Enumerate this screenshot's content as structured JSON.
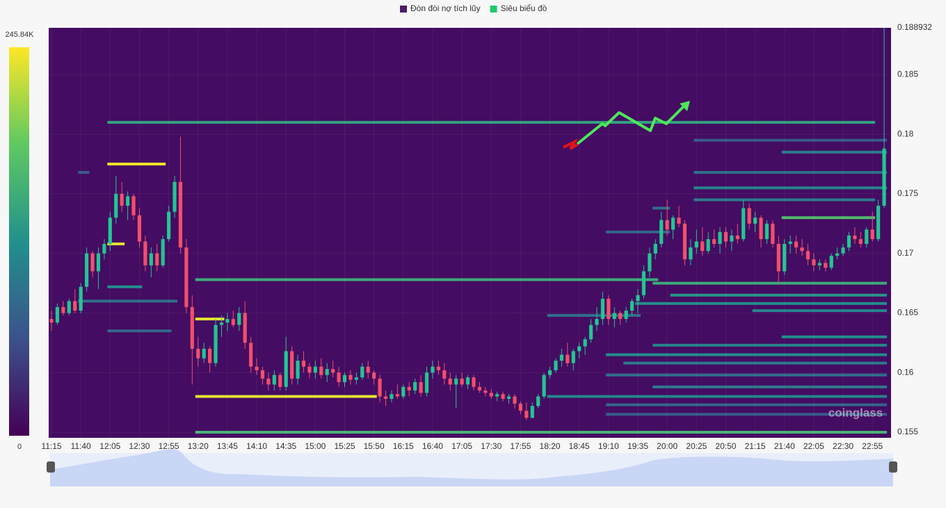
{
  "chart_data": {
    "type": "candlestick",
    "legend": [
      {
        "name": "Đòn đòi nợ tích lũy",
        "color": "#4b1a6b"
      },
      {
        "name": "Siêu biểu đồ",
        "color": "#1fc96e"
      }
    ],
    "watermark": "coinglass",
    "up_color": "#22c592",
    "down_color": "#f04f6b",
    "grid": true,
    "ylim": [
      0.15453,
      0.188932
    ],
    "yticks": [
      0.155,
      0.16,
      0.165,
      0.17,
      0.175,
      0.18,
      0.185,
      0.188932
    ],
    "clim": [
      0,
      245840
    ],
    "cticks": [
      0,
      {
        "value": 245840,
        "label": "245.84K"
      }
    ],
    "colorscale": [
      "#440154",
      "#3b528b",
      "#21918c",
      "#5ec962",
      "#fde725"
    ],
    "categories": [
      "11:15",
      null,
      null,
      null,
      null,
      "11:40",
      null,
      null,
      null,
      null,
      "12:05",
      null,
      null,
      null,
      null,
      "12:30",
      null,
      null,
      null,
      null,
      "12:55",
      null,
      null,
      null,
      null,
      "13:20",
      null,
      null,
      null,
      null,
      "13:45",
      null,
      null,
      null,
      null,
      "14:10",
      null,
      null,
      null,
      null,
      "14:35",
      null,
      null,
      null,
      null,
      "15:00",
      null,
      null,
      null,
      null,
      "15:25",
      null,
      null,
      null,
      null,
      "15:50",
      null,
      null,
      null,
      null,
      "16:15",
      null,
      null,
      null,
      null,
      "16:40",
      null,
      null,
      null,
      null,
      "17:05",
      null,
      null,
      null,
      null,
      "17:30",
      null,
      null,
      null,
      null,
      "17:55",
      null,
      null,
      null,
      null,
      "18:20",
      null,
      null,
      null,
      null,
      "18:45",
      null,
      null,
      null,
      null,
      "19:10",
      null,
      null,
      null,
      null,
      "19:35",
      null,
      null,
      null,
      null,
      "20:00",
      null,
      null,
      null,
      null,
      "20:25",
      null,
      null,
      null,
      null,
      "20:50",
      null,
      null,
      null,
      null,
      "21:15",
      null,
      null,
      null,
      null,
      "21:40",
      null,
      null,
      null,
      null,
      "22:05",
      null,
      null,
      null,
      null,
      "22:30",
      null,
      null,
      null,
      null,
      "22:55",
      null,
      null
    ],
    "ohlc": [
      [
        0.1645,
        0.1652,
        0.1635,
        0.1642
      ],
      [
        0.1642,
        0.1658,
        0.164,
        0.1655
      ],
      [
        0.1655,
        0.166,
        0.1648,
        0.165
      ],
      [
        0.165,
        0.1662,
        0.1648,
        0.166
      ],
      [
        0.166,
        0.167,
        0.165,
        0.1652
      ],
      [
        0.1652,
        0.1675,
        0.165,
        0.1672
      ],
      [
        0.1672,
        0.1705,
        0.1668,
        0.17
      ],
      [
        0.17,
        0.1702,
        0.168,
        0.1685
      ],
      [
        0.1685,
        0.1705,
        0.167,
        0.17
      ],
      [
        0.17,
        0.1712,
        0.1695,
        0.1708
      ],
      [
        0.1708,
        0.1735,
        0.1702,
        0.173
      ],
      [
        0.173,
        0.1765,
        0.1725,
        0.175
      ],
      [
        0.175,
        0.176,
        0.1735,
        0.174
      ],
      [
        0.174,
        0.1752,
        0.1728,
        0.1748
      ],
      [
        0.1748,
        0.175,
        0.1728,
        0.1732
      ],
      [
        0.1732,
        0.1738,
        0.1705,
        0.171
      ],
      [
        0.171,
        0.1715,
        0.1685,
        0.169
      ],
      [
        0.169,
        0.1705,
        0.168,
        0.17
      ],
      [
        0.17,
        0.1708,
        0.1685,
        0.169
      ],
      [
        0.169,
        0.1715,
        0.1688,
        0.1712
      ],
      [
        0.1712,
        0.174,
        0.171,
        0.1735
      ],
      [
        0.1735,
        0.1765,
        0.173,
        0.176
      ],
      [
        0.176,
        0.1798,
        0.17,
        0.1705
      ],
      [
        0.1705,
        0.1712,
        0.165,
        0.1655
      ],
      [
        0.1655,
        0.1665,
        0.159,
        0.162
      ],
      [
        0.162,
        0.163,
        0.1605,
        0.1612
      ],
      [
        0.1612,
        0.1625,
        0.1608,
        0.162
      ],
      [
        0.162,
        0.1622,
        0.16,
        0.1608
      ],
      [
        0.1608,
        0.1645,
        0.1605,
        0.164
      ],
      [
        0.164,
        0.1648,
        0.163,
        0.1642
      ],
      [
        0.1642,
        0.165,
        0.1635,
        0.1645
      ],
      [
        0.1645,
        0.1652,
        0.1638,
        0.164
      ],
      [
        0.164,
        0.1655,
        0.1635,
        0.165
      ],
      [
        0.165,
        0.166,
        0.162,
        0.1625
      ],
      [
        0.1625,
        0.163,
        0.16,
        0.1605
      ],
      [
        0.1605,
        0.1612,
        0.1598,
        0.1602
      ],
      [
        0.1602,
        0.1605,
        0.159,
        0.1595
      ],
      [
        0.1595,
        0.16,
        0.1585,
        0.159
      ],
      [
        0.159,
        0.1602,
        0.1585,
        0.1598
      ],
      [
        0.1598,
        0.16,
        0.1585,
        0.1588
      ],
      [
        0.1588,
        0.163,
        0.1585,
        0.1618
      ],
      [
        0.1618,
        0.1622,
        0.159,
        0.1595
      ],
      [
        0.1595,
        0.1615,
        0.159,
        0.161
      ],
      [
        0.161,
        0.1618,
        0.16,
        0.1605
      ],
      [
        0.1605,
        0.1608,
        0.1595,
        0.16
      ],
      [
        0.16,
        0.161,
        0.1595,
        0.1605
      ],
      [
        0.1605,
        0.1612,
        0.1595,
        0.1598
      ],
      [
        0.1598,
        0.1608,
        0.1592,
        0.1603
      ],
      [
        0.1603,
        0.161,
        0.1596,
        0.16
      ],
      [
        0.16,
        0.1605,
        0.1588,
        0.1592
      ],
      [
        0.1592,
        0.16,
        0.1588,
        0.1598
      ],
      [
        0.1598,
        0.1602,
        0.159,
        0.1594
      ],
      [
        0.1594,
        0.16,
        0.159,
        0.1596
      ],
      [
        0.1596,
        0.1608,
        0.1594,
        0.1605
      ],
      [
        0.1605,
        0.161,
        0.1595,
        0.16
      ],
      [
        0.16,
        0.1602,
        0.159,
        0.1595
      ],
      [
        0.1595,
        0.1598,
        0.1575,
        0.158
      ],
      [
        0.158,
        0.1585,
        0.1572,
        0.1578
      ],
      [
        0.1578,
        0.1585,
        0.1575,
        0.1582
      ],
      [
        0.1582,
        0.159,
        0.1578,
        0.158
      ],
      [
        0.158,
        0.159,
        0.1578,
        0.1588
      ],
      [
        0.1588,
        0.1592,
        0.158,
        0.1585
      ],
      [
        0.1585,
        0.1595,
        0.1582,
        0.1592
      ],
      [
        0.1592,
        0.1598,
        0.158,
        0.1583
      ],
      [
        0.1583,
        0.1605,
        0.158,
        0.16
      ],
      [
        0.16,
        0.161,
        0.1595,
        0.1605
      ],
      [
        0.1605,
        0.161,
        0.1598,
        0.1602
      ],
      [
        0.1602,
        0.1608,
        0.159,
        0.1595
      ],
      [
        0.1595,
        0.16,
        0.1585,
        0.159
      ],
      [
        0.159,
        0.1598,
        0.157,
        0.1595
      ],
      [
        0.1595,
        0.16,
        0.1588,
        0.159
      ],
      [
        0.159,
        0.1598,
        0.1586,
        0.1596
      ],
      [
        0.1596,
        0.1598,
        0.1585,
        0.1588
      ],
      [
        0.1588,
        0.1592,
        0.1583,
        0.1585
      ],
      [
        0.1585,
        0.1588,
        0.158,
        0.1583
      ],
      [
        0.1583,
        0.1586,
        0.1578,
        0.158
      ],
      [
        0.158,
        0.1584,
        0.1576,
        0.1582
      ],
      [
        0.1582,
        0.1584,
        0.1576,
        0.1578
      ],
      [
        0.1578,
        0.1582,
        0.1574,
        0.158
      ],
      [
        0.158,
        0.1582,
        0.157,
        0.1574
      ],
      [
        0.1574,
        0.1576,
        0.1565,
        0.1568
      ],
      [
        0.1568,
        0.1575,
        0.156,
        0.1562
      ],
      [
        0.1562,
        0.1575,
        0.1562,
        0.1572
      ],
      [
        0.1572,
        0.1582,
        0.157,
        0.158
      ],
      [
        0.158,
        0.16,
        0.1578,
        0.1598
      ],
      [
        0.1598,
        0.1605,
        0.1595,
        0.1602
      ],
      [
        0.1602,
        0.1612,
        0.16,
        0.161
      ],
      [
        0.161,
        0.162,
        0.1605,
        0.1615
      ],
      [
        0.1615,
        0.1625,
        0.1605,
        0.1608
      ],
      [
        0.1608,
        0.162,
        0.1602,
        0.1618
      ],
      [
        0.1618,
        0.1625,
        0.1612,
        0.1622
      ],
      [
        0.1622,
        0.163,
        0.1615,
        0.1628
      ],
      [
        0.1628,
        0.1645,
        0.1625,
        0.164
      ],
      [
        0.164,
        0.1655,
        0.1635,
        0.1645
      ],
      [
        0.1645,
        0.1668,
        0.164,
        0.1662
      ],
      [
        0.1662,
        0.1665,
        0.164,
        0.1645
      ],
      [
        0.1645,
        0.1655,
        0.1638,
        0.165
      ],
      [
        0.165,
        0.1652,
        0.164,
        0.1645
      ],
      [
        0.1645,
        0.1655,
        0.1642,
        0.1652
      ],
      [
        0.1652,
        0.1662,
        0.1648,
        0.166
      ],
      [
        0.166,
        0.167,
        0.165,
        0.1665
      ],
      [
        0.1665,
        0.169,
        0.1662,
        0.1685
      ],
      [
        0.1685,
        0.1705,
        0.168,
        0.17
      ],
      [
        0.17,
        0.1712,
        0.1695,
        0.1708
      ],
      [
        0.1708,
        0.1735,
        0.1705,
        0.1728
      ],
      [
        0.1728,
        0.1745,
        0.1715,
        0.172
      ],
      [
        0.172,
        0.1732,
        0.1712,
        0.173
      ],
      [
        0.173,
        0.174,
        0.1722,
        0.1725
      ],
      [
        0.1725,
        0.1728,
        0.169,
        0.1695
      ],
      [
        0.1695,
        0.1712,
        0.169,
        0.1705
      ],
      [
        0.1705,
        0.172,
        0.17,
        0.171
      ],
      [
        0.171,
        0.1722,
        0.1698,
        0.1702
      ],
      [
        0.1702,
        0.1718,
        0.17,
        0.1712
      ],
      [
        0.1712,
        0.172,
        0.1705,
        0.1708
      ],
      [
        0.1708,
        0.1722,
        0.17,
        0.1718
      ],
      [
        0.1718,
        0.1722,
        0.1705,
        0.171
      ],
      [
        0.171,
        0.172,
        0.1702,
        0.1715
      ],
      [
        0.1715,
        0.1725,
        0.1708,
        0.1712
      ],
      [
        0.1712,
        0.1745,
        0.171,
        0.1738
      ],
      [
        0.1738,
        0.1742,
        0.172,
        0.1725
      ],
      [
        0.1725,
        0.1735,
        0.1718,
        0.173
      ],
      [
        0.173,
        0.1732,
        0.1705,
        0.1712
      ],
      [
        0.1712,
        0.1728,
        0.1708,
        0.1725
      ],
      [
        0.1725,
        0.1728,
        0.1705,
        0.1708
      ],
      [
        0.1708,
        0.1715,
        0.1675,
        0.1685
      ],
      [
        0.1685,
        0.1712,
        0.1682,
        0.1708
      ],
      [
        0.1708,
        0.1715,
        0.17,
        0.171
      ],
      [
        0.171,
        0.1715,
        0.17,
        0.1705
      ],
      [
        0.1705,
        0.1712,
        0.1698,
        0.1702
      ],
      [
        0.1702,
        0.1708,
        0.169,
        0.1695
      ],
      [
        0.1695,
        0.17,
        0.1685,
        0.169
      ],
      [
        0.169,
        0.1695,
        0.1686,
        0.1692
      ],
      [
        0.1692,
        0.1695,
        0.1685,
        0.1688
      ],
      [
        0.1688,
        0.17,
        0.1686,
        0.1698
      ],
      [
        0.1698,
        0.1705,
        0.1695,
        0.17
      ],
      [
        0.17,
        0.1708,
        0.1698,
        0.1705
      ],
      [
        0.1705,
        0.1718,
        0.1702,
        0.1715
      ],
      [
        0.1715,
        0.1722,
        0.1708,
        0.1712
      ],
      [
        0.1712,
        0.1718,
        0.1705,
        0.1708
      ],
      [
        0.1708,
        0.1722,
        0.1705,
        0.172
      ],
      [
        0.172,
        0.1735,
        0.171,
        0.1712
      ],
      [
        0.1712,
        0.1745,
        0.171,
        0.174
      ],
      [
        0.174,
        0.188932,
        0.1738,
        0.1788
      ]
    ],
    "heatmap": [
      {
        "price": 0.181,
        "from": "12:05",
        "to": "22:55",
        "value": 140000
      },
      {
        "price": 0.1775,
        "from": "12:05",
        "to": "12:50",
        "value": 240000
      },
      {
        "price": 0.1708,
        "from": "12:05",
        "to": "12:15",
        "value": 235000
      },
      {
        "price": 0.1672,
        "from": "12:05",
        "to": "12:30",
        "value": 120000
      },
      {
        "price": 0.166,
        "from": "11:40",
        "to": "13:00",
        "value": 90000
      },
      {
        "price": 0.1635,
        "from": "12:05",
        "to": "12:55",
        "value": 80000
      },
      {
        "price": 0.1768,
        "from": "11:40",
        "to": "11:45",
        "value": 70000
      },
      {
        "price": 0.1678,
        "from": "13:20",
        "to": "19:50",
        "value": 150000
      },
      {
        "price": 0.1645,
        "from": "13:20",
        "to": "13:40",
        "value": 235000
      },
      {
        "price": 0.158,
        "from": "13:20",
        "to": "15:50",
        "value": 235000
      },
      {
        "price": 0.155,
        "from": "13:20",
        "to": "23:05",
        "value": 160000
      },
      {
        "price": 0.173,
        "from": "21:40",
        "to": "22:55",
        "value": 170000
      },
      {
        "price": 0.1675,
        "from": "19:50",
        "to": "23:05",
        "value": 150000
      },
      {
        "price": 0.1665,
        "from": "20:05",
        "to": "23:05",
        "value": 130000
      },
      {
        "price": 0.1658,
        "from": "19:35",
        "to": "23:05",
        "value": 120000
      },
      {
        "price": 0.1648,
        "from": "18:20",
        "to": "19:35",
        "value": 90000
      },
      {
        "price": 0.1652,
        "from": "21:15",
        "to": "23:05",
        "value": 110000
      },
      {
        "price": 0.163,
        "from": "21:40",
        "to": "23:05",
        "value": 120000
      },
      {
        "price": 0.1623,
        "from": "19:50",
        "to": "23:05",
        "value": 110000
      },
      {
        "price": 0.1615,
        "from": "19:10",
        "to": "23:05",
        "value": 120000
      },
      {
        "price": 0.1608,
        "from": "19:25",
        "to": "23:05",
        "value": 100000
      },
      {
        "price": 0.1598,
        "from": "19:10",
        "to": "23:05",
        "value": 90000
      },
      {
        "price": 0.1588,
        "from": "19:50",
        "to": "23:05",
        "value": 100000
      },
      {
        "price": 0.158,
        "from": "18:20",
        "to": "23:05",
        "value": 110000
      },
      {
        "price": 0.1573,
        "from": "19:10",
        "to": "23:05",
        "value": 80000
      },
      {
        "price": 0.1565,
        "from": "19:10",
        "to": "23:05",
        "value": 70000
      },
      {
        "price": 0.1768,
        "from": "20:25",
        "to": "23:05",
        "value": 90000
      },
      {
        "price": 0.1785,
        "from": "21:40",
        "to": "23:05",
        "value": 100000
      },
      {
        "price": 0.1795,
        "from": "20:25",
        "to": "23:05",
        "value": 70000
      },
      {
        "price": 0.1755,
        "from": "20:25",
        "to": "23:05",
        "value": 110000
      },
      {
        "price": 0.1745,
        "from": "20:25",
        "to": "22:55",
        "value": 100000
      },
      {
        "price": 0.1738,
        "from": "19:50",
        "to": "20:00",
        "value": 90000
      },
      {
        "price": 0.1718,
        "from": "19:10",
        "to": "20:00",
        "value": 80000
      }
    ]
  }
}
